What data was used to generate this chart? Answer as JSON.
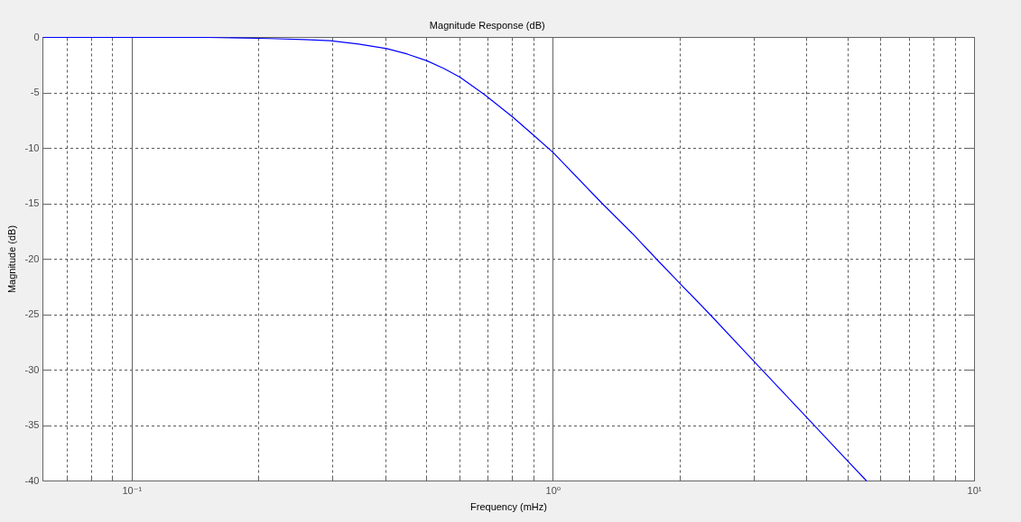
{
  "chart_data": {
    "type": "line",
    "title": "Magnitude Response (dB)",
    "xlabel": "Frequency (mHz)",
    "ylabel": "Magnitude (dB)",
    "log": "x",
    "x": [
      0.0614,
      0.1,
      0.15,
      0.212,
      0.256,
      0.295,
      0.345,
      0.402,
      0.45,
      0.501,
      0.55,
      0.601,
      0.689,
      0.802,
      0.903,
      1,
      1.308,
      1.542,
      1.759,
      2,
      2.357,
      3.01,
      4.004,
      5,
      5.545
    ],
    "series": [
      {
        "color": "#0000ff",
        "values": [
          0,
          0,
          0,
          -0.1,
          -0.2,
          -0.3,
          -0.6,
          -1.0,
          -1.5,
          -2.1,
          -2.8,
          -3.6,
          -5.2,
          -7.2,
          -8.9,
          -10.4,
          -15.0,
          -17.7,
          -20.0,
          -22.2,
          -25.0,
          -29.3,
          -34.3,
          -38.2,
          -40
        ]
      }
    ],
    "xlim": [
      0.0614,
      10
    ],
    "ylim": [
      -40,
      0
    ],
    "xticks": [
      {
        "value": 0.07,
        "label": null
      },
      {
        "value": 0.08,
        "label": null
      },
      {
        "value": 0.09,
        "label": null
      },
      {
        "value": 0.1,
        "label": "10⁻¹"
      },
      {
        "value": 0.2,
        "label": null
      },
      {
        "value": 0.3,
        "label": null
      },
      {
        "value": 0.4,
        "label": null
      },
      {
        "value": 0.5,
        "label": null
      },
      {
        "value": 0.6,
        "label": null
      },
      {
        "value": 0.7,
        "label": null
      },
      {
        "value": 0.8,
        "label": null
      },
      {
        "value": 0.9,
        "label": null
      },
      {
        "value": 1,
        "label": "10⁰"
      },
      {
        "value": 2,
        "label": null
      },
      {
        "value": 3,
        "label": null
      },
      {
        "value": 4,
        "label": null
      },
      {
        "value": 5,
        "label": null
      },
      {
        "value": 6,
        "label": null
      },
      {
        "value": 7,
        "label": null
      },
      {
        "value": 8,
        "label": null
      },
      {
        "value": 9,
        "label": null
      },
      {
        "value": 10,
        "label": "10¹"
      }
    ],
    "yticks": [
      -40,
      -35,
      -30,
      -25,
      -20,
      -15,
      -10,
      -5,
      0
    ],
    "grid": true,
    "line_style": "solid"
  }
}
